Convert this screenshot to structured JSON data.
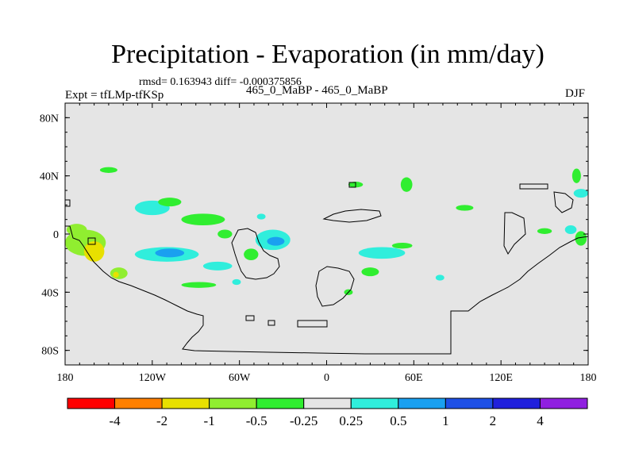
{
  "title": "Precipitation - Evaporation (in mm/day)",
  "stats": "rmsd= 0.163943 diff= -0.000375856",
  "expt_label": "Expt = tfLMp-tfKSp",
  "center_label": "465_0_MaBP - 465_0_MaBP",
  "season": "DJF",
  "chart_data": {
    "type": "heatmap",
    "projection": "cylindrical equidistant",
    "lon_range": [
      -180,
      180
    ],
    "lat_range": [
      -90,
      90
    ],
    "x_ticks": [
      {
        "value": -180,
        "label": "180"
      },
      {
        "value": -120,
        "label": "120W"
      },
      {
        "value": -60,
        "label": "60W"
      },
      {
        "value": 0,
        "label": "0"
      },
      {
        "value": 60,
        "label": "60E"
      },
      {
        "value": 120,
        "label": "120E"
      },
      {
        "value": 180,
        "label": "180"
      }
    ],
    "y_ticks": [
      {
        "value": 80,
        "label": "80N"
      },
      {
        "value": 40,
        "label": "40N"
      },
      {
        "value": 0,
        "label": "0"
      },
      {
        "value": -40,
        "label": "40S"
      },
      {
        "value": -80,
        "label": "80S"
      }
    ],
    "colorbar": {
      "boundaries": [
        "-4",
        "-2",
        "-1",
        "-0.5",
        "-0.25",
        "0.25",
        "0.5",
        "1",
        "2",
        "4"
      ],
      "colors": [
        "#ff0000",
        "#ff8000",
        "#e8e000",
        "#90ee30",
        "#30ee30",
        "#e5e5e5",
        "#30eedc",
        "#1aa0f0",
        "#1e50e6",
        "#2020dc",
        "#9020e0"
      ]
    },
    "background_color": "#e5e5e5",
    "features": [
      {
        "lon": -166,
        "lat": -6,
        "rx": 14,
        "ry": 9,
        "class": "-0.5"
      },
      {
        "lon": -160,
        "lat": -12,
        "rx": 7,
        "ry": 7,
        "class": "-1"
      },
      {
        "lon": -172,
        "lat": 3,
        "rx": 7,
        "ry": 4,
        "class": "-0.5"
      },
      {
        "lon": -143,
        "lat": -27,
        "rx": 6,
        "ry": 4,
        "class": "-0.5"
      },
      {
        "lon": -145,
        "lat": -28,
        "rx": 2,
        "ry": 2,
        "class": "-1"
      },
      {
        "lon": -150,
        "lat": 44,
        "rx": 6,
        "ry": 2,
        "class": "-0.25"
      },
      {
        "lon": -120,
        "lat": 18,
        "rx": 12,
        "ry": 5,
        "class": "0.25"
      },
      {
        "lon": -108,
        "lat": 22,
        "rx": 8,
        "ry": 3,
        "class": "-0.25"
      },
      {
        "lon": -85,
        "lat": 10,
        "rx": 15,
        "ry": 4,
        "class": "-0.25"
      },
      {
        "lon": -110,
        "lat": -14,
        "rx": 22,
        "ry": 5,
        "class": "0.25"
      },
      {
        "lon": -108,
        "lat": -13,
        "rx": 10,
        "ry": 3,
        "class": "0.5"
      },
      {
        "lon": -70,
        "lat": 0,
        "rx": 5,
        "ry": 3,
        "class": "-0.25"
      },
      {
        "lon": -37,
        "lat": -4,
        "rx": 12,
        "ry": 7,
        "class": "0.25"
      },
      {
        "lon": -35,
        "lat": -5,
        "rx": 6,
        "ry": 3,
        "class": "0.5"
      },
      {
        "lon": -52,
        "lat": -14,
        "rx": 5,
        "ry": 4,
        "class": "-0.25"
      },
      {
        "lon": -75,
        "lat": -22,
        "rx": 10,
        "ry": 3,
        "class": "0.25"
      },
      {
        "lon": -88,
        "lat": -35,
        "rx": 12,
        "ry": 2,
        "class": "-0.25"
      },
      {
        "lon": -62,
        "lat": -33,
        "rx": 3,
        "ry": 2,
        "class": "0.25"
      },
      {
        "lon": 38,
        "lat": -13,
        "rx": 16,
        "ry": 4,
        "class": "0.25"
      },
      {
        "lon": 52,
        "lat": -8,
        "rx": 7,
        "ry": 2,
        "class": "-0.25"
      },
      {
        "lon": 30,
        "lat": -26,
        "rx": 6,
        "ry": 3,
        "class": "-0.25"
      },
      {
        "lon": 55,
        "lat": 34,
        "rx": 4,
        "ry": 5,
        "class": "-0.25"
      },
      {
        "lon": 20,
        "lat": 34,
        "rx": 5,
        "ry": 2,
        "class": "-0.25"
      },
      {
        "lon": 95,
        "lat": 18,
        "rx": 6,
        "ry": 2,
        "class": "-0.25"
      },
      {
        "lon": 78,
        "lat": -30,
        "rx": 3,
        "ry": 2,
        "class": "0.25"
      },
      {
        "lon": 150,
        "lat": 2,
        "rx": 5,
        "ry": 2,
        "class": "-0.25"
      },
      {
        "lon": 168,
        "lat": 3,
        "rx": 4,
        "ry": 3,
        "class": "0.25"
      },
      {
        "lon": 175,
        "lat": 28,
        "rx": 5,
        "ry": 3,
        "class": "0.25"
      },
      {
        "lon": 172,
        "lat": 40,
        "rx": 3,
        "ry": 5,
        "class": "-0.25"
      },
      {
        "lon": 175,
        "lat": -3,
        "rx": 4,
        "ry": 5,
        "class": "-0.25"
      },
      {
        "lon": -45,
        "lat": 12,
        "rx": 3,
        "ry": 2,
        "class": "0.25"
      },
      {
        "lon": 15,
        "lat": -40,
        "rx": 3,
        "ry": 2,
        "class": "-0.25"
      }
    ]
  }
}
